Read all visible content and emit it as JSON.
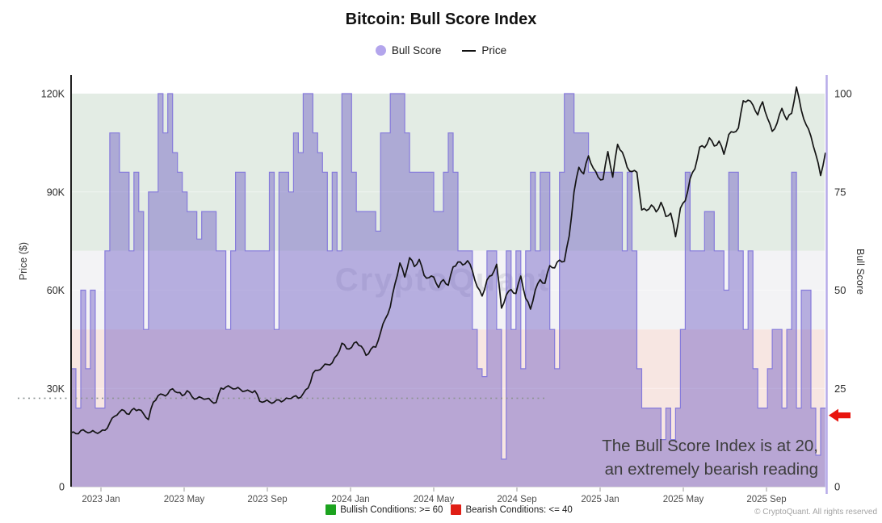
{
  "header": {
    "title": "Bitcoin: Bull Score Index",
    "legend": {
      "bull_score": "Bull Score",
      "price": "Price"
    }
  },
  "watermark": "CryptoQuant",
  "annotation": {
    "line1": "The Bull Score Index is at 20,",
    "line2": "an extremely bearish reading"
  },
  "footer": {
    "bullish_label": "Bullish Conditions: >= 60",
    "bearish_label": "Bearish Conditions: <= 40",
    "copyright": "© CryptoQuant. All rights reserved"
  },
  "colors": {
    "bull_area_fill": "rgba(98,79,192,0.42)",
    "bull_area_edge": "#867bdb",
    "price_line": "#141414",
    "band_bullish": "#e3ece4",
    "band_neutral": "#f3f3f5",
    "band_bearish": "#f7e6e2",
    "right_axis": "#b7abe9",
    "left_axis": "#1f1f1f",
    "arrow_red": "#e8150e",
    "swatch_green": "#1ca31f",
    "swatch_red": "#e01e15",
    "legend_dot": "#b3a5ec",
    "dotted_line": "#8e9494"
  },
  "chart_data": {
    "type": "area+line",
    "title": "Bitcoin: Bull Score Index",
    "x_cadence": "weekly",
    "x_range": [
      "2022-11-20",
      "2025-11-16"
    ],
    "x_tick_labels": [
      "2023 Jan",
      "2023 May",
      "2023 Sep",
      "2024 Jan",
      "2024 May",
      "2024 Sep",
      "2025 Jan",
      "2025 May",
      "2025 Sep"
    ],
    "left_axis": {
      "label": "Price ($)",
      "ticks": [
        "0",
        "30K",
        "60K",
        "90K",
        "120K"
      ],
      "tick_values_k": [
        0,
        30,
        60,
        90,
        120
      ],
      "ylim_k": [
        0,
        125
      ]
    },
    "right_axis": {
      "label": "Bull Score",
      "ticks": [
        "0",
        "25",
        "50",
        "75",
        "100"
      ],
      "tick_values": [
        0,
        25,
        50,
        75,
        100
      ],
      "ylim": [
        0,
        104
      ]
    },
    "bands": [
      {
        "name": "bullish",
        "from": 60,
        "to": 104,
        "color": "#e3ece4"
      },
      {
        "name": "neutral",
        "from": 40,
        "to": 60,
        "color": "#f3f3f5"
      },
      {
        "name": "bearish",
        "from": 0,
        "to": 40,
        "color": "#f7e6e2"
      }
    ],
    "reference_dotted_line": {
      "axis": "left",
      "value_k": 27
    },
    "current_bull_score": 20,
    "series": [
      {
        "name": "Bull Score",
        "type": "area-step",
        "axis": "right",
        "values": [
          30,
          20,
          50,
          30,
          50,
          20,
          20,
          60,
          90,
          90,
          80,
          80,
          60,
          80,
          70,
          40,
          75,
          75,
          100,
          90,
          100,
          85,
          80,
          75,
          70,
          70,
          63,
          70,
          70,
          70,
          60,
          60,
          40,
          60,
          80,
          80,
          60,
          60,
          60,
          60,
          60,
          80,
          40,
          80,
          80,
          75,
          90,
          85,
          100,
          100,
          90,
          85,
          80,
          60,
          80,
          60,
          100,
          100,
          80,
          70,
          70,
          70,
          70,
          65,
          90,
          90,
          100,
          100,
          100,
          90,
          80,
          80,
          80,
          80,
          80,
          70,
          70,
          80,
          90,
          80,
          60,
          60,
          60,
          40,
          30,
          28,
          60,
          60,
          40,
          7,
          60,
          40,
          60,
          30,
          60,
          80,
          60,
          80,
          80,
          40,
          30,
          80,
          100,
          100,
          90,
          90,
          90,
          80,
          80,
          80,
          80,
          80,
          80,
          80,
          60,
          80,
          60,
          30,
          20,
          20,
          20,
          20,
          12,
          20,
          12,
          20,
          40,
          80,
          60,
          60,
          60,
          70,
          70,
          60,
          60,
          50,
          80,
          80,
          60,
          40,
          60,
          30,
          20,
          20,
          30,
          40,
          40,
          20,
          40,
          80,
          20,
          50,
          50,
          20,
          8,
          20,
          20
        ]
      },
      {
        "name": "Price",
        "type": "line",
        "axis": "left",
        "unit": "USD thousands",
        "values": [
          16.5,
          16.2,
          17.1,
          16.8,
          16.6,
          16.6,
          16.7,
          17.2,
          19.5,
          21.5,
          22.8,
          23.2,
          22.1,
          23.9,
          23.5,
          22.2,
          20.5,
          25.8,
          27.8,
          28.1,
          28.3,
          29.9,
          28.7,
          27.8,
          29.3,
          27.5,
          26.9,
          27.1,
          26.8,
          26.1,
          25.7,
          30.1,
          30.4,
          30.3,
          29.9,
          29.7,
          29.2,
          29.1,
          29.3,
          26.1,
          26.0,
          25.9,
          25.8,
          26.5,
          26.3,
          26.9,
          27.5,
          27.0,
          28.4,
          30.1,
          34.6,
          35.5,
          36.5,
          37.3,
          37.8,
          40.2,
          43.8,
          42.1,
          42.5,
          44.2,
          42.9,
          40.1,
          42.0,
          42.6,
          47.1,
          51.3,
          54.9,
          62.0,
          68.3,
          64.0,
          69.9,
          67.2,
          69.4,
          64.5,
          63.8,
          64.0,
          60.8,
          63.2,
          61.5,
          67.1,
          68.6,
          67.7,
          69.0,
          65.9,
          61.0,
          58.2,
          63.1,
          64.5,
          67.9,
          54.5,
          58.5,
          60.2,
          59.0,
          64.3,
          57.5,
          54.2,
          60.1,
          63.2,
          62.1,
          67.5,
          66.8,
          69.2,
          68.8,
          76.5,
          90.0,
          97.5,
          95.5,
          101.0,
          97.2,
          94.5,
          93.8,
          102.3,
          94.5,
          104.5,
          102.1,
          97.5,
          96.2,
          96.0,
          84.5,
          84.3,
          86.0,
          83.9,
          86.8,
          82.5,
          83.5,
          76.3,
          85.0,
          87.3,
          94.0,
          97.0,
          103.7,
          103.5,
          106.5,
          104.0,
          105.5,
          101.5,
          107.5,
          108.2,
          109.5,
          117.8,
          118.0,
          116.5,
          113.5,
          117.5,
          112.5,
          108.5,
          111.0,
          115.5,
          112.0,
          114.0,
          122.0,
          115.0,
          110.5,
          107.0,
          101.5,
          95.0,
          102.0
        ]
      }
    ]
  }
}
